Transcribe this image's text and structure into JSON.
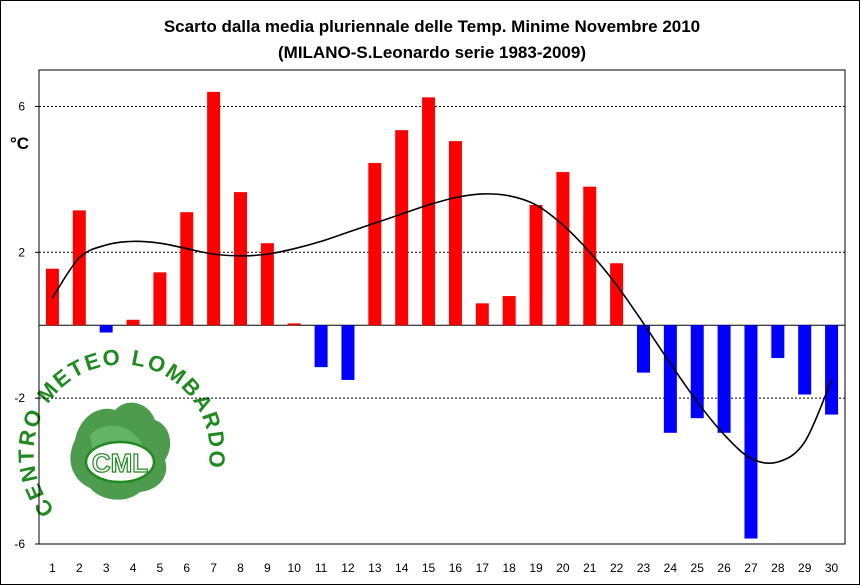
{
  "chart_data": {
    "type": "bar",
    "title": "Scarto dalla media pluriennale delle Temp. Minime Novembre 2010",
    "subtitle": "(MILANO-S.Leonardo serie 1983-2009)",
    "ylabel": "°C",
    "ylim": [
      -6,
      7
    ],
    "yticks": [
      "6",
      "2",
      "-2",
      "-6"
    ],
    "ytick_values": [
      6,
      2,
      -2,
      -6
    ],
    "grid": true,
    "categories": [
      "1",
      "2",
      "3",
      "4",
      "5",
      "6",
      "7",
      "8",
      "9",
      "10",
      "11",
      "12",
      "13",
      "14",
      "15",
      "16",
      "17",
      "18",
      "19",
      "20",
      "21",
      "22",
      "23",
      "24",
      "25",
      "26",
      "27",
      "28",
      "29",
      "30"
    ],
    "values": [
      1.55,
      3.15,
      -0.2,
      0.15,
      1.45,
      3.1,
      6.4,
      3.65,
      2.25,
      0.05,
      -1.15,
      -1.5,
      4.45,
      5.35,
      6.25,
      5.05,
      0.6,
      0.8,
      3.3,
      4.2,
      3.8,
      1.7,
      -1.3,
      -2.95,
      -2.55,
      -2.95,
      -5.85,
      -0.9,
      -1.9,
      -2.45
    ],
    "trend": [
      0.75,
      1.85,
      2.2,
      2.3,
      2.25,
      2.1,
      1.95,
      1.9,
      1.95,
      2.1,
      2.3,
      2.55,
      2.8,
      3.05,
      3.3,
      3.5,
      3.6,
      3.55,
      3.3,
      2.75,
      2.0,
      1.1,
      0.05,
      -1.05,
      -2.1,
      -3.0,
      -3.65,
      -3.75,
      -3.2,
      -1.5
    ],
    "colors": {
      "positive": "#ff0000",
      "negative": "#0000ff",
      "trend": "#000000",
      "grid": "#000000"
    }
  },
  "logo": {
    "ring_text": "CENTRO METEO LOMBARDO",
    "abbr": "CML",
    "colors": {
      "text": "#1f8a1f",
      "map": "#2e8b2e"
    }
  }
}
